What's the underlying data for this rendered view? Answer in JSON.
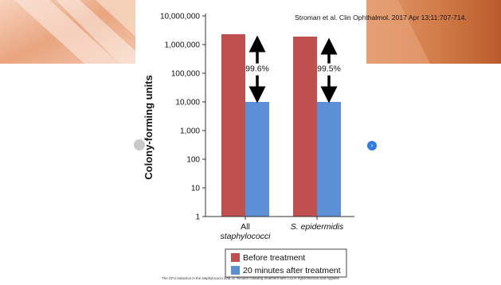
{
  "citation": "Stroman et al. Clin Ophthalmol. 2017 Apr 13;11:707-714.",
  "caption": "The CFU reduction in the staphylococci load 20 minutes following treatment with 0.01% hypochlorous acid hygiene",
  "colors": {
    "before": "#c0504d",
    "after": "#5b8fd6",
    "banner_left": "#e9a57f",
    "banner_right": "#c86a3a"
  },
  "chart_data": {
    "type": "bar",
    "scale": "log",
    "ylabel": "Colony-forming units",
    "ylim": [
      1,
      10000000
    ],
    "yticks": [
      {
        "value": 1,
        "label": "1"
      },
      {
        "value": 10,
        "label": "10"
      },
      {
        "value": 100,
        "label": "100"
      },
      {
        "value": 1000,
        "label": "1,000"
      },
      {
        "value": 10000,
        "label": "10,000"
      },
      {
        "value": 100000,
        "label": "100,000"
      },
      {
        "value": 1000000,
        "label": "1,000,000"
      },
      {
        "value": 10000000,
        "label": "10,000,000"
      }
    ],
    "categories": [
      {
        "line1": "All",
        "line2": "staphylococci"
      },
      {
        "line1": "S. epidermidis",
        "line2": ""
      }
    ],
    "series": [
      {
        "name": "Before treatment",
        "values": [
          2300000,
          1900000
        ]
      },
      {
        "name": "20 minutes after treatment",
        "values": [
          10000,
          10000
        ]
      }
    ],
    "annotations": [
      "99.6%",
      "99.5%"
    ],
    "legend_position": "bottom"
  }
}
